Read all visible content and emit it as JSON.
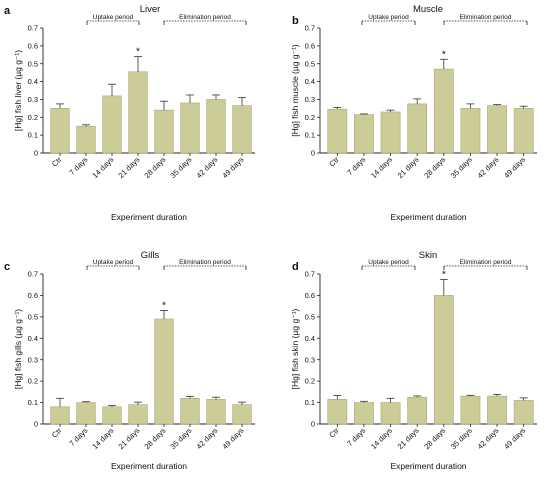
{
  "chart_data": [
    {
      "type": "bar",
      "panel": "a",
      "title": "Liver",
      "ylabel": "[Hg] fish liver (µg g⁻¹)",
      "xlabel": "Experiment duration",
      "ylim": [
        0,
        0.7
      ],
      "yticks": [
        "0",
        "0.1",
        "0.2",
        "0.3",
        "0.4",
        "0.5",
        "0.6",
        "0.7"
      ],
      "categories": [
        "Ctr",
        "7 days",
        "14 days",
        "21 days",
        "28 days",
        "35 days",
        "42 days",
        "49 days"
      ],
      "values": [
        0.25,
        0.15,
        0.32,
        0.455,
        0.24,
        0.28,
        0.3,
        0.265
      ],
      "errors": [
        0.025,
        0.008,
        0.065,
        0.085,
        0.05,
        0.045,
        0.025,
        0.045
      ],
      "significant": [
        3
      ],
      "uptake_label": "Uptake period",
      "elimination_label": "Elimination period"
    },
    {
      "type": "bar",
      "panel": "b",
      "title": "Muscle",
      "ylabel": "[Hg] fish muscle (µg g⁻¹)",
      "xlabel": "Experiment duration",
      "ylim": [
        0,
        0.7
      ],
      "yticks": [
        "0",
        "0.1",
        "0.2",
        "0.3",
        "0.4",
        "0.5",
        "0.6",
        "0.7"
      ],
      "categories": [
        "Ctr",
        "7 days",
        "14 days",
        "21 days",
        "28 days",
        "35 days",
        "42 days",
        "49 days"
      ],
      "values": [
        0.245,
        0.215,
        0.23,
        0.275,
        0.47,
        0.25,
        0.265,
        0.25
      ],
      "errors": [
        0.01,
        0.004,
        0.01,
        0.028,
        0.055,
        0.025,
        0.006,
        0.012
      ],
      "significant": [
        4
      ],
      "uptake_label": "Uptake period",
      "elimination_label": "Elimination period"
    },
    {
      "type": "bar",
      "panel": "c",
      "title": "Gills",
      "ylabel": "[Hg] fish gills (µg g⁻¹)",
      "xlabel": "Experiment duration",
      "ylim": [
        0,
        0.7
      ],
      "yticks": [
        "0",
        "0.1",
        "0.2",
        "0.3",
        "0.4",
        "0.5",
        "0.6",
        "0.7"
      ],
      "categories": [
        "Ctr",
        "7 days",
        "14 days",
        "21 days",
        "28 days",
        "35 days",
        "42 days",
        "49 days"
      ],
      "values": [
        0.08,
        0.1,
        0.08,
        0.09,
        0.49,
        0.12,
        0.115,
        0.09
      ],
      "errors": [
        0.04,
        0.004,
        0.006,
        0.012,
        0.04,
        0.008,
        0.01,
        0.012
      ],
      "significant": [
        4
      ],
      "uptake_label": "Uptake period",
      "elimination_label": "Elimination period"
    },
    {
      "type": "bar",
      "panel": "d",
      "title": "Skin",
      "ylabel": "[Hg] fish skin (µg g⁻¹)",
      "xlabel": "Experiment duration",
      "ylim": [
        0,
        0.7
      ],
      "yticks": [
        "0",
        "0.1",
        "0.2",
        "0.3",
        "0.4",
        "0.5",
        "0.6",
        "0.7"
      ],
      "categories": [
        "Ctr",
        "7 days",
        "14 days",
        "21 days",
        "28 days",
        "35 days",
        "42 days",
        "49 days"
      ],
      "values": [
        0.115,
        0.1,
        0.1,
        0.125,
        0.6,
        0.13,
        0.13,
        0.11
      ],
      "errors": [
        0.018,
        0.006,
        0.02,
        0.006,
        0.075,
        0.004,
        0.008,
        0.012
      ],
      "significant": [
        4
      ],
      "uptake_label": "Uptake period",
      "elimination_label": "Elimination period"
    }
  ],
  "colors": {
    "bar_fill": "#cccc99",
    "bar_stroke": "#a8a874",
    "axis": "#222222"
  }
}
